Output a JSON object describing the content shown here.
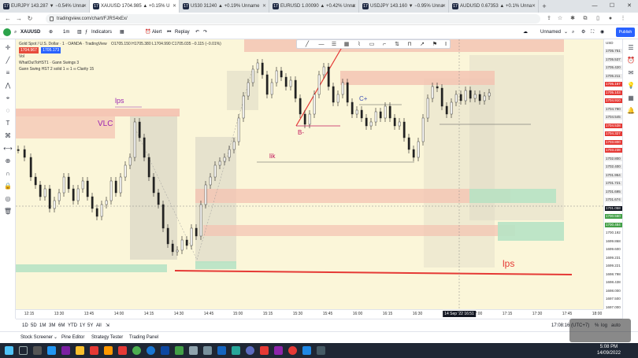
{
  "browser": {
    "tabs": [
      {
        "label": "EURJPY 143.287 ▼ −0.54% Unna",
        "active": false
      },
      {
        "label": "XAUUSD 1704.985 ▲ +0.15% U",
        "active": true
      },
      {
        "label": "US30 31240 ▲ +0.19% Unname",
        "active": false
      },
      {
        "label": "EURUSD 1.00090 ▲ +0.42% Unna",
        "active": false
      },
      {
        "label": "USDJPY 143.160 ▼ −0.95% Unna",
        "active": false
      },
      {
        "label": "AUDUSD 0.67353 ▲ +0.1% Unna",
        "active": false
      }
    ],
    "url": "tradingview.com/chart/FJRS4xEx/"
  },
  "header": {
    "symbol": "XAUUSD",
    "interval": "1m",
    "indicators": "Indicators",
    "alert": "Alert",
    "replay": "Replay",
    "layout": "Unnamed",
    "publish": "Publish"
  },
  "legend": {
    "title": "Gold Spot / U.S. Dollar · 1 · OANDA · TradingView",
    "ohlc": "O1705.150 H1705.380 L1704.990 C1705.035 −0.115 (−0.01%)",
    "bid": "1704.967",
    "ask": "1705.173",
    "ind1": "Vol",
    "ind2": "WhatOutToHST1 · Gann Swings 3",
    "ind3": "Gann Swing HST 2 solid 1 ∞ 1 ∞ Clarity 15"
  },
  "annotations": {
    "lps_top": "lps",
    "vlc": "VLC",
    "b_minus": "B-",
    "c_plus": "C+",
    "lik": "lik",
    "lps_bottom": "lps"
  },
  "price_scale": {
    "currency": "USD",
    "labels": [
      "1705.751",
      "1705.537",
      "1705.420",
      "1705.211",
      "1705.167",
      "1705.103",
      "1704.910",
      "1704.790",
      "1704.545",
      "1704.538",
      "1704.327",
      "1703.800",
      "1703.238",
      "1702.800",
      "1702.400",
      "1701.954",
      "1701.721",
      "1701.695",
      "1701.674",
      "1701.058",
      "1700.560",
      "1700.484",
      "1700.192",
      "1699.868",
      "1699.600",
      "1699.231",
      "1699.221",
      "1698.798",
      "1698.438",
      "1698.000",
      "1697.500",
      "1697.000"
    ],
    "current": "1701.058"
  },
  "time_axis": {
    "labels": [
      "12:15",
      "13:30",
      "13:45",
      "14:00",
      "14:15",
      "14:30",
      "14:45",
      "15:00",
      "15:15",
      "15:30",
      "15:45",
      "16:00",
      "16:15",
      "16:30",
      "16:45",
      "17:00",
      "17:15",
      "17:30",
      "17:45",
      "18:00"
    ],
    "cursor": "14 Sep '22  16:51"
  },
  "range_bar": {
    "ranges": [
      "1D",
      "5D",
      "1M",
      "3M",
      "6M",
      "YTD",
      "1Y",
      "5Y",
      "All"
    ],
    "clock": "17:08:16 (UTC+7)",
    "scale_opts": [
      "%",
      "log",
      "auto"
    ]
  },
  "panels": [
    "Stock Screener",
    "Pine Editor",
    "Strategy Tester",
    "Trading Panel"
  ],
  "taskbar": {
    "time": "5:08 PM",
    "date": "14/09/2022"
  },
  "colors": {
    "chart_bg": "#fbf6d9",
    "red_zone": "#f4c2b0",
    "green_zone": "#b7e3c4",
    "gray_zone": "#d9d5c4",
    "red_line": "#e53935",
    "taskbar": "#1f2734"
  }
}
